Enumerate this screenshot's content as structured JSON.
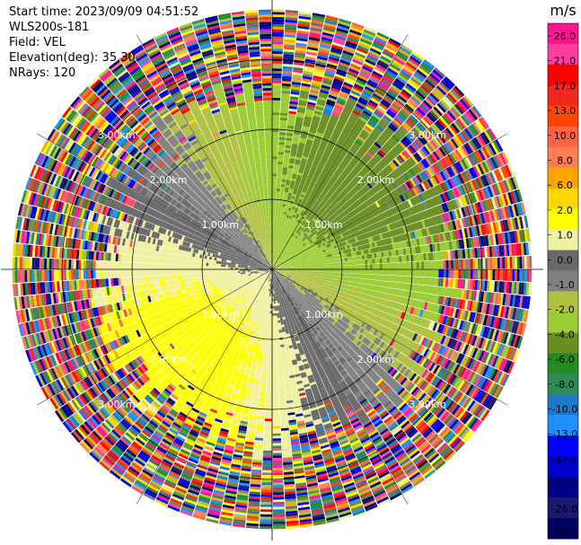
{
  "info": {
    "start_time": "Start time: 2023/09/09 04:51:52",
    "device": "WLS200s-181",
    "field": "Field: VEL",
    "elevation": "Elevation(deg): 35.30",
    "nrays": "NRays: 120"
  },
  "chart_data": {
    "type": "ppi",
    "field": "VEL",
    "unit": "m/s",
    "elevation_deg": 35.3,
    "n_rays": 120,
    "range_rings_km": [
      1.0,
      2.0,
      3.0
    ],
    "ring_labels": [
      "1.00km",
      "2.00km",
      "3.00km"
    ],
    "max_range_km": 3.7,
    "grid": true,
    "colorbar": {
      "ticks": [
        "26.0",
        "21.0",
        "17.0",
        "13.0",
        "10.0",
        "8.0",
        "6.0",
        "2.0",
        "1.0",
        "0.0",
        "-1.0",
        "-2.0",
        "-4.0",
        "-6.0",
        "-8.0",
        "-10.0",
        "-13.0",
        "-17.0",
        "-21.0",
        "-26.0",
        "-30.0"
      ],
      "colors": [
        "#ff1493",
        "#ff3ea0",
        "#ff0000",
        "#f0281e",
        "#ff4500",
        "#ff6347",
        "#ff7f50",
        "#ffa500",
        "#ffd700",
        "#ffff00",
        "#f0f0a0",
        "#696969",
        "#808080",
        "#b0c040",
        "#9acd32",
        "#6b8e23",
        "#228b22",
        "#2e8b57",
        "#1e78c8",
        "#1e90ff",
        "#0000ff",
        "#0000cd",
        "#00008b",
        "#191970",
        "#000060"
      ]
    },
    "wind_model": {
      "from_direction_deg": 45,
      "speed_ms": 9.0
    }
  }
}
